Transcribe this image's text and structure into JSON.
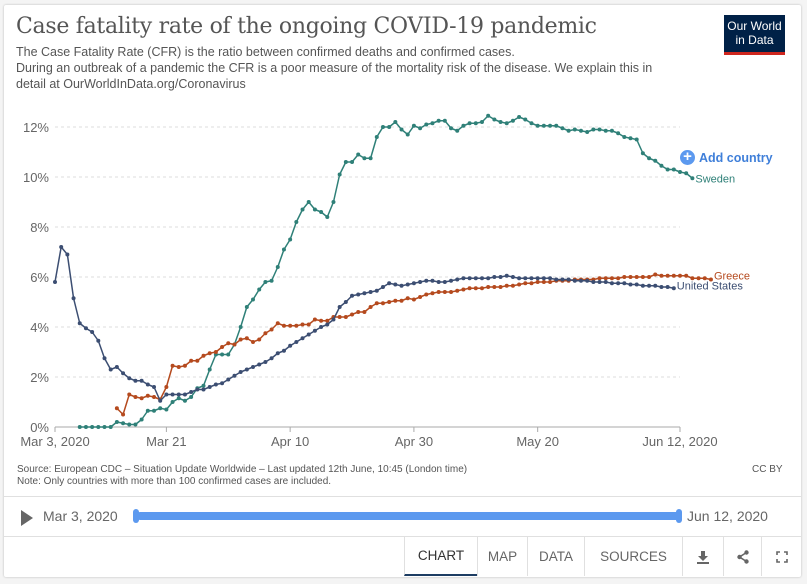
{
  "header": {
    "title": "Case fatality rate of the ongoing COVID-19 pandemic",
    "subtitle_lines": [
      "The Case Fatality Rate (CFR) is the ratio between confirmed deaths and confirmed cases.",
      "During an outbreak of a pandemic the CFR is a poor measure of the mortality risk of the disease. We explain this in",
      "detail at OurWorldInData.org/Coronavirus"
    ],
    "logo_line1": "Our World",
    "logo_line2": "in Data"
  },
  "add_country_label": "Add country",
  "footer": {
    "source": "Source: European CDC – Situation Update Worldwide – Last updated 12th June, 10:45 (London time)",
    "note": "Note: Only countries with more than 100 confirmed cases are included.",
    "license": "CC BY"
  },
  "timeline": {
    "start_label": "Mar 3, 2020",
    "end_label": "Jun 12, 2020",
    "range_start_fraction": 0,
    "range_end_fraction": 1
  },
  "tabs": [
    {
      "label": "CHART",
      "active": true
    },
    {
      "label": "MAP",
      "active": false
    },
    {
      "label": "DATA",
      "active": false
    },
    {
      "label": "SOURCES",
      "active": false
    }
  ],
  "toolbar_icons": [
    "download-icon",
    "share-icon",
    "fullscreen-icon"
  ],
  "chart_data": {
    "type": "line",
    "title": "Case fatality rate of the ongoing COVID-19 pandemic",
    "xlabel": "",
    "ylabel": "",
    "x_start": "2020-03-03",
    "x_end": "2020-06-12",
    "x_ticks": [
      {
        "day": 0,
        "label": "Mar 3, 2020"
      },
      {
        "day": 18,
        "label": "Mar 21"
      },
      {
        "day": 38,
        "label": "Apr 10"
      },
      {
        "day": 58,
        "label": "Apr 30"
      },
      {
        "day": 78,
        "label": "May 20"
      },
      {
        "day": 101,
        "label": "Jun 12, 2020"
      }
    ],
    "y_ticks": [
      0,
      2,
      4,
      6,
      8,
      10,
      12
    ],
    "y_tick_suffix": "%",
    "ylim": [
      0,
      12.5
    ],
    "grid": "horizontal-dashed",
    "legend": "line-end labels (right)",
    "series": [
      {
        "name": "Sweden",
        "color": "#2f8078",
        "start_day": 4,
        "values": [
          0,
          0,
          0,
          0,
          0,
          0,
          0.2,
          0.15,
          0.1,
          0.1,
          0.3,
          0.65,
          0.65,
          0.75,
          0.7,
          1.0,
          1.15,
          1.05,
          1.2,
          1.55,
          1.65,
          2.3,
          2.9,
          2.9,
          2.9,
          3.3,
          4.0,
          4.8,
          5.1,
          5.5,
          5.8,
          5.85,
          6.4,
          7.1,
          7.5,
          8.2,
          8.7,
          9.0,
          8.7,
          8.6,
          8.4,
          9.0,
          10.1,
          10.6,
          10.6,
          10.9,
          10.75,
          10.75,
          11.6,
          12.0,
          12.0,
          12.2,
          11.9,
          11.7,
          12.05,
          11.95,
          12.1,
          12.15,
          12.25,
          12.25,
          11.95,
          11.85,
          12.05,
          12.15,
          12.15,
          12.2,
          12.45,
          12.3,
          12.2,
          12.15,
          12.25,
          12.4,
          12.3,
          12.15,
          12.05,
          12.05,
          12.05,
          12.05,
          11.95,
          11.85,
          11.9,
          11.85,
          11.8,
          11.9,
          11.9,
          11.85,
          11.85,
          11.75,
          11.6,
          11.55,
          11.5,
          10.95,
          10.75,
          10.65,
          10.45,
          10.3,
          10.3,
          10.2,
          10.15,
          9.95
        ],
        "end_label": "Sweden"
      },
      {
        "name": "Greece",
        "color": "#b54a1e",
        "start_day": 10,
        "values": [
          0.75,
          0.5,
          1.3,
          1.2,
          1.15,
          1.25,
          1.2,
          1.1,
          1.6,
          2.45,
          2.4,
          2.45,
          2.65,
          2.65,
          2.85,
          2.95,
          3.0,
          3.2,
          3.35,
          3.3,
          3.5,
          3.55,
          3.4,
          3.5,
          3.75,
          3.9,
          4.15,
          4.05,
          4.05,
          4.05,
          4.1,
          4.1,
          4.3,
          4.25,
          4.25,
          4.4,
          4.4,
          4.4,
          4.5,
          4.6,
          4.6,
          4.8,
          4.95,
          4.95,
          5.0,
          5.05,
          5.05,
          5.15,
          5.1,
          5.2,
          5.3,
          5.35,
          5.4,
          5.4,
          5.4,
          5.45,
          5.5,
          5.55,
          5.55,
          5.55,
          5.6,
          5.6,
          5.6,
          5.65,
          5.65,
          5.7,
          5.75,
          5.75,
          5.8,
          5.8,
          5.8,
          5.85,
          5.85,
          5.85,
          5.9,
          5.9,
          5.9,
          5.9,
          5.95,
          5.95,
          5.95,
          5.95,
          6.0,
          6.0,
          6.0,
          6.0,
          6.0,
          6.1,
          6.05,
          6.05,
          6.05,
          6.05,
          6.05,
          5.95,
          5.95,
          5.95,
          5.9
        ],
        "end_label": "Greece"
      },
      {
        "name": "United States",
        "color": "#3c4e72",
        "start_day": 0,
        "values": [
          5.8,
          7.2,
          6.9,
          5.15,
          4.15,
          3.95,
          3.8,
          3.45,
          2.75,
          2.3,
          2.4,
          2.15,
          1.95,
          1.85,
          1.85,
          1.7,
          1.6,
          1.05,
          1.3,
          1.3,
          1.3,
          1.3,
          1.4,
          1.5,
          1.5,
          1.6,
          1.7,
          1.75,
          1.9,
          2.05,
          2.2,
          2.3,
          2.4,
          2.5,
          2.6,
          2.75,
          2.95,
          3.05,
          3.25,
          3.4,
          3.55,
          3.7,
          3.85,
          4.0,
          4.1,
          4.3,
          4.8,
          5.0,
          5.25,
          5.3,
          5.35,
          5.4,
          5.45,
          5.6,
          5.75,
          5.7,
          5.65,
          5.7,
          5.75,
          5.8,
          5.85,
          5.85,
          5.8,
          5.8,
          5.85,
          5.9,
          5.95,
          5.95,
          5.95,
          5.95,
          5.95,
          6.0,
          6.0,
          6.05,
          6.0,
          5.95,
          5.95,
          5.95,
          5.95,
          5.95,
          5.95,
          5.9,
          5.9,
          5.9,
          5.85,
          5.85,
          5.85,
          5.8,
          5.8,
          5.8,
          5.75,
          5.75,
          5.75,
          5.7,
          5.7,
          5.65,
          5.65,
          5.65,
          5.6,
          5.6,
          5.55
        ],
        "end_label": "United States"
      }
    ]
  }
}
